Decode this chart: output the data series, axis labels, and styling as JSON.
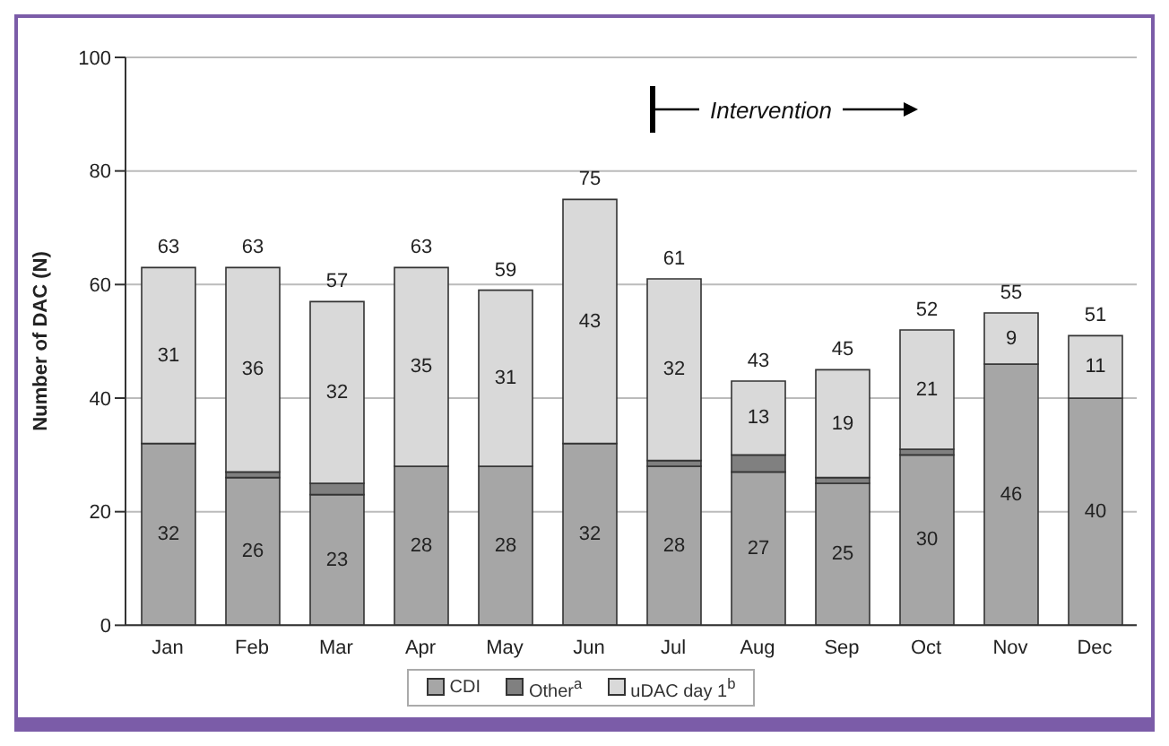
{
  "chart_data": {
    "type": "bar",
    "stacked": true,
    "ylabel": "Number of DAC (N)",
    "categories": [
      "Jan",
      "Feb",
      "Mar",
      "Apr",
      "May",
      "Jun",
      "Jul",
      "Aug",
      "Sep",
      "Oct",
      "Nov",
      "Dec"
    ],
    "series": [
      {
        "name": "CDI",
        "color": "#a6a6a6",
        "values": [
          32,
          26,
          23,
          28,
          28,
          32,
          28,
          27,
          25,
          30,
          46,
          40
        ],
        "value_labels": [
          "32",
          "26",
          "23",
          "28",
          "28",
          "32",
          "28",
          "27",
          "25",
          "30",
          "46",
          "40"
        ]
      },
      {
        "name": "Other$^{a}$",
        "color": "#808080",
        "values": [
          0,
          1,
          2,
          0,
          0,
          0,
          1,
          3,
          1,
          1,
          0,
          0
        ]
      },
      {
        "name": "uDAC day 1$^{b}$",
        "color": "#d9d9d9",
        "values": [
          31,
          36,
          32,
          35,
          31,
          43,
          32,
          13,
          19,
          21,
          9,
          11
        ],
        "value_labels": [
          "31",
          "36",
          "32",
          "35",
          "31",
          "43",
          "32",
          "13",
          "19",
          "21",
          "9",
          "11"
        ]
      }
    ],
    "totals": [
      "63",
      "63",
      "57",
      "63",
      "59",
      "75",
      "61",
      "43",
      "45",
      "52",
      "55",
      "51"
    ],
    "ylim": [
      0,
      100
    ],
    "yticks": [
      0,
      20,
      40,
      60,
      80,
      100
    ],
    "grid": "y",
    "legend": "bottom",
    "annotations": [
      "Intervention"
    ]
  }
}
